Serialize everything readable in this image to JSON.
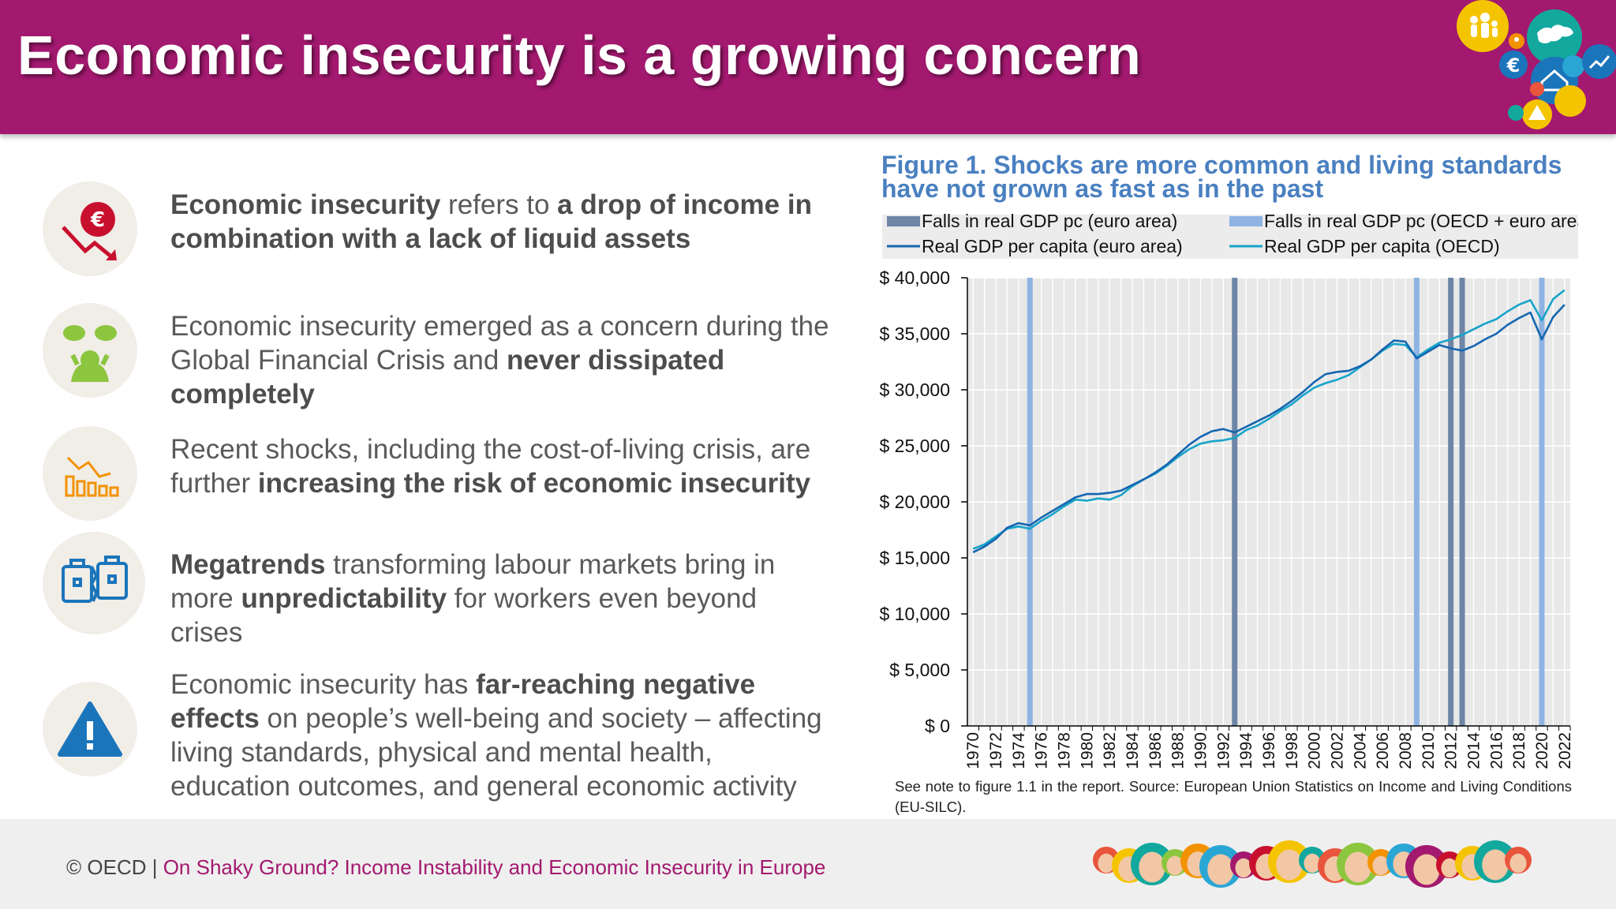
{
  "header": {
    "title": "Economic insecurity is a growing concern"
  },
  "bullets": [
    {
      "icon": "euro-down-icon",
      "parts": [
        {
          "t": "Economic insecurity",
          "b": true
        },
        {
          "t": " refers to ",
          "b": false
        },
        {
          "t": "a drop of income in combination with a lack of liquid assets",
          "b": true
        }
      ]
    },
    {
      "icon": "worried-person-icon",
      "parts": [
        {
          "t": "Economic insecurity emerged as a concern during the Global Financial Crisis and ",
          "b": false
        },
        {
          "t": "never dissipated completely",
          "b": true
        }
      ]
    },
    {
      "icon": "declining-chart-icon",
      "parts": [
        {
          "t": "Recent shocks, including the cost-of-living crisis, are further ",
          "b": false
        },
        {
          "t": "increasing the risk of economic insecurity",
          "b": true
        }
      ]
    },
    {
      "icon": "broken-briefcase-icon",
      "parts": [
        {
          "t": "Megatrends",
          "b": true
        },
        {
          "t": " transforming labour markets bring in more ",
          "b": false
        },
        {
          "t": "unpredictability",
          "b": true
        },
        {
          "t": " for workers even beyond crises",
          "b": false
        }
      ]
    },
    {
      "icon": "warning-icon",
      "parts": [
        {
          "t": "Economic insecurity has ",
          "b": false
        },
        {
          "t": "far-reaching negative effects",
          "b": true
        },
        {
          "t": " on people’s well-being and society – affecting living standards, physical and mental health, education outcomes, and general economic activity",
          "b": false
        }
      ]
    }
  ],
  "figure": {
    "title": "Figure 1. Shocks are more common and living standards have not grown as fast as in the past",
    "note": "See note to figure 1.1 in the report. Source: European Union Statistics on Income and Living Conditions (EU-SILC)."
  },
  "chart_data": {
    "type": "line",
    "title": "Figure 1. Shocks are more common and living standards have not grown as fast as in the past",
    "xlabel": "",
    "ylabel": "",
    "x": [
      1970,
      1971,
      1972,
      1973,
      1974,
      1975,
      1976,
      1977,
      1978,
      1979,
      1980,
      1981,
      1982,
      1983,
      1984,
      1985,
      1986,
      1987,
      1988,
      1989,
      1990,
      1991,
      1992,
      1993,
      1994,
      1995,
      1996,
      1997,
      1998,
      1999,
      2000,
      2001,
      2002,
      2003,
      2004,
      2005,
      2006,
      2007,
      2008,
      2009,
      2010,
      2011,
      2012,
      2013,
      2014,
      2015,
      2016,
      2017,
      2018,
      2019,
      2020,
      2021,
      2022
    ],
    "x_tick_labels": [
      "1970",
      "1972",
      "1974",
      "1976",
      "1978",
      "1980",
      "1982",
      "1984",
      "1986",
      "1988",
      "1990",
      "1992",
      "1994",
      "1996",
      "1998",
      "2000",
      "2002",
      "2004",
      "2006",
      "2008",
      "2010",
      "2012",
      "2014",
      "2016",
      "2018",
      "2020",
      "2022"
    ],
    "y_ticks": [
      0,
      5000,
      10000,
      15000,
      20000,
      25000,
      30000,
      35000,
      40000
    ],
    "y_tick_labels": [
      "$ 0",
      "$ 5,000",
      "$ 10,000",
      "$ 15,000",
      "$ 20,000",
      "$ 25,000",
      "$ 30,000",
      "$ 35,000",
      "$ 40,000"
    ],
    "ylim": [
      0,
      40000
    ],
    "grid": true,
    "legend_position": "top",
    "series": [
      {
        "name": "Real GDP per capita (euro area)",
        "color": "#1566b0",
        "values": [
          15500,
          16000,
          16700,
          17700,
          18100,
          17900,
          18600,
          19200,
          19800,
          20400,
          20700,
          20700,
          20800,
          21000,
          21500,
          22000,
          22600,
          23300,
          24200,
          25100,
          25800,
          26300,
          26500,
          26200,
          26700,
          27200,
          27700,
          28300,
          29000,
          29800,
          30700,
          31400,
          31600,
          31700,
          32100,
          32700,
          33600,
          34400,
          34300,
          32800,
          33400,
          34000,
          33700,
          33500,
          33900,
          34500,
          35000,
          35800,
          36400,
          36900,
          34500,
          36500,
          37600
        ]
      },
      {
        "name": "Real GDP per capita (OECD)",
        "color": "#17a4c9",
        "values": [
          15800,
          16200,
          16900,
          17600,
          17800,
          17600,
          18300,
          18900,
          19600,
          20200,
          20100,
          20300,
          20200,
          20600,
          21400,
          22000,
          22500,
          23200,
          24000,
          24700,
          25200,
          25400,
          25500,
          25700,
          26400,
          26800,
          27400,
          28100,
          28700,
          29500,
          30200,
          30600,
          30900,
          31300,
          32000,
          32700,
          33500,
          34100,
          34000,
          32900,
          33600,
          34200,
          34500,
          34900,
          35400,
          35900,
          36300,
          37000,
          37600,
          38000,
          36200,
          38100,
          38900
        ]
      },
      {
        "name": "Falls in real GDP pc (euro area)",
        "color": "#6e85a6",
        "type": "vertical_band",
        "years": [
          1993,
          2012,
          2013
        ]
      },
      {
        "name": "Falls in real GDP pc (OECD + euro area)",
        "color": "#8fb4e3",
        "type": "vertical_band",
        "years": [
          1975,
          2009,
          2020
        ]
      }
    ]
  },
  "footer": {
    "copyright": "© OECD | ",
    "publication": "On Shaky Ground? Income Instability and Economic Insecurity in Europe"
  }
}
